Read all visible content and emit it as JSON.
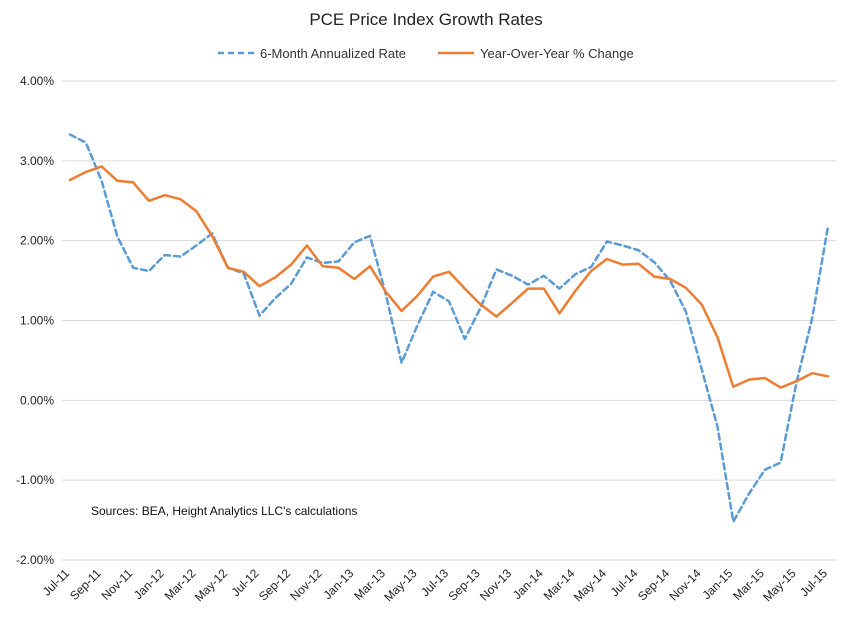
{
  "chart_data": {
    "type": "line",
    "title": "PCE Price Index Growth Rates",
    "source_note": "Sources: BEA, Height Analytics LLC's calculations",
    "ylim": [
      -2.0,
      4.0
    ],
    "yticks": [
      {
        "value": 4.0,
        "label": "4.00%"
      },
      {
        "value": 3.0,
        "label": "3.00%"
      },
      {
        "value": 2.0,
        "label": "2.00%"
      },
      {
        "value": 1.0,
        "label": "1.00%"
      },
      {
        "value": 0.0,
        "label": "0.00%"
      },
      {
        "value": -1.0,
        "label": "-1.00%"
      },
      {
        "value": -2.0,
        "label": "-2.00%"
      }
    ],
    "grid": "horizontal",
    "legend_position": "top",
    "categories": [
      "Jul-11",
      "Aug-11",
      "Sep-11",
      "Oct-11",
      "Nov-11",
      "Dec-11",
      "Jan-12",
      "Feb-12",
      "Mar-12",
      "Apr-12",
      "May-12",
      "Jun-12",
      "Jul-12",
      "Aug-12",
      "Sep-12",
      "Oct-12",
      "Nov-12",
      "Dec-12",
      "Jan-13",
      "Feb-13",
      "Mar-13",
      "Apr-13",
      "May-13",
      "Jun-13",
      "Jul-13",
      "Aug-13",
      "Sep-13",
      "Oct-13",
      "Nov-13",
      "Dec-13",
      "Jan-14",
      "Feb-14",
      "Mar-14",
      "Apr-14",
      "May-14",
      "Jun-14",
      "Jul-14",
      "Aug-14",
      "Sep-14",
      "Oct-14",
      "Nov-14",
      "Dec-14",
      "Jan-15",
      "Feb-15",
      "Mar-15",
      "Apr-15",
      "May-15",
      "Jun-15",
      "Jul-15"
    ],
    "xtick_labels": [
      {
        "index": 0,
        "label": "Jul-11"
      },
      {
        "index": 2,
        "label": "Sep-11"
      },
      {
        "index": 4,
        "label": "Nov-11"
      },
      {
        "index": 6,
        "label": "Jan-12"
      },
      {
        "index": 8,
        "label": "Mar-12"
      },
      {
        "index": 10,
        "label": "May-12"
      },
      {
        "index": 12,
        "label": "Jul-12"
      },
      {
        "index": 14,
        "label": "Sep-12"
      },
      {
        "index": 16,
        "label": "Nov-12"
      },
      {
        "index": 18,
        "label": "Jan-13"
      },
      {
        "index": 20,
        "label": "Mar-13"
      },
      {
        "index": 22,
        "label": "May-13"
      },
      {
        "index": 24,
        "label": "Jul-13"
      },
      {
        "index": 26,
        "label": "Sep-13"
      },
      {
        "index": 28,
        "label": "Nov-13"
      },
      {
        "index": 30,
        "label": "Jan-14"
      },
      {
        "index": 32,
        "label": "Mar-14"
      },
      {
        "index": 34,
        "label": "May-14"
      },
      {
        "index": 36,
        "label": "Jul-14"
      },
      {
        "index": 38,
        "label": "Sep-14"
      },
      {
        "index": 40,
        "label": "Nov-14"
      },
      {
        "index": 42,
        "label": "Jan-15"
      },
      {
        "index": 44,
        "label": "Mar-15"
      },
      {
        "index": 46,
        "label": "May-15"
      },
      {
        "index": 48,
        "label": "Jul-15"
      }
    ],
    "series": [
      {
        "name": "6-Month Annualized Rate",
        "color": "#5b9bd5",
        "style": "dashed",
        "values": [
          3.33,
          3.23,
          2.75,
          2.05,
          1.66,
          1.62,
          1.82,
          1.8,
          1.94,
          2.09,
          1.66,
          1.59,
          1.06,
          1.28,
          1.46,
          1.79,
          1.72,
          1.74,
          1.98,
          2.06,
          1.33,
          0.47,
          0.94,
          1.36,
          1.24,
          0.77,
          1.16,
          1.64,
          1.56,
          1.45,
          1.56,
          1.4,
          1.58,
          1.67,
          1.99,
          1.94,
          1.88,
          1.73,
          1.5,
          1.11,
          0.39,
          -0.33,
          -1.52,
          -1.17,
          -0.87,
          -0.78,
          0.22,
          1.03,
          2.18
        ]
      },
      {
        "name": "Year-Over-Year % Change",
        "color": "#ed7d31",
        "style": "solid",
        "values": [
          2.76,
          2.86,
          2.93,
          2.75,
          2.73,
          2.5,
          2.57,
          2.52,
          2.37,
          2.06,
          1.66,
          1.61,
          1.43,
          1.54,
          1.7,
          1.94,
          1.68,
          1.66,
          1.52,
          1.68,
          1.36,
          1.12,
          1.31,
          1.55,
          1.61,
          1.4,
          1.2,
          1.05,
          1.22,
          1.4,
          1.4,
          1.09,
          1.37,
          1.62,
          1.77,
          1.7,
          1.71,
          1.55,
          1.52,
          1.41,
          1.2,
          0.79,
          0.17,
          0.26,
          0.28,
          0.16,
          0.24,
          0.34,
          0.3
        ]
      }
    ]
  }
}
